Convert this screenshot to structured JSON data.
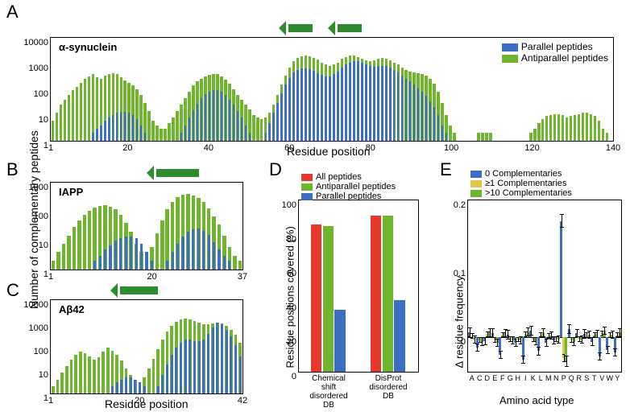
{
  "colors": {
    "antiparallel": "#6fb52e",
    "parallel": "#3c6fc4",
    "all": "#e8382e",
    "comp0": "#3c6fc4",
    "comp_ge1": "#d9c84a",
    "comp_gt10": "#6fb52e",
    "axis": "#000000",
    "background": "#ffffff",
    "arrow": "#2e8b2e"
  },
  "panel_labels": {
    "A": "A",
    "B": "B",
    "C": "C",
    "D": "D",
    "E": "E"
  },
  "shared_y_label": "Number of complementary peptides",
  "panelA": {
    "title": "α-synuclein",
    "xlabel": "Residue position",
    "ylog": true,
    "ymin": 1,
    "ymax": 10000,
    "yticks": [
      1,
      10,
      100,
      1000,
      10000
    ],
    "xmin": 1,
    "xmax": 140,
    "xticks": [
      1,
      20,
      40,
      60,
      80,
      100,
      120,
      140
    ],
    "arrows": [
      [
        60,
        66
      ],
      [
        72,
        78
      ]
    ],
    "legend": [
      {
        "label": "Parallel peptides",
        "color": "parallel"
      },
      {
        "label": "Antiparallel peptides",
        "color": "antiparallel"
      }
    ],
    "series_antiparallel": [
      6,
      12,
      25,
      40,
      60,
      90,
      120,
      180,
      260,
      320,
      380,
      300,
      260,
      350,
      400,
      420,
      380,
      300,
      220,
      180,
      140,
      100,
      60,
      30,
      14,
      6,
      4,
      3,
      3,
      5,
      8,
      14,
      25,
      45,
      80,
      140,
      200,
      260,
      320,
      360,
      400,
      380,
      320,
      240,
      160,
      100,
      60,
      40,
      25,
      16,
      10,
      8,
      7,
      8,
      12,
      25,
      60,
      150,
      350,
      700,
      1200,
      1600,
      1900,
      2000,
      1900,
      1700,
      1400,
      1100,
      900,
      800,
      900,
      1100,
      1500,
      1800,
      2000,
      2000,
      1800,
      1500,
      1300,
      1200,
      1300,
      1500,
      1600,
      1500,
      1300,
      1100,
      900,
      700,
      580,
      500,
      450,
      420,
      400,
      350,
      260,
      160,
      80,
      30,
      10,
      4,
      2,
      1,
      1,
      1,
      1,
      1,
      2,
      2,
      2,
      2,
      1,
      1,
      1,
      1,
      1,
      1,
      1,
      1,
      1,
      2,
      3,
      5,
      7,
      9,
      10,
      11,
      11,
      10,
      8,
      9,
      10,
      11,
      12,
      12,
      11,
      9,
      6,
      3,
      2,
      1
    ],
    "series_parallel": [
      0,
      0,
      0,
      0,
      0,
      0,
      0,
      1,
      1,
      1,
      2,
      3,
      4,
      6,
      8,
      10,
      12,
      13,
      13,
      12,
      10,
      7,
      4,
      2,
      1,
      0,
      0,
      0,
      0,
      0,
      0,
      1,
      2,
      4,
      8,
      15,
      28,
      45,
      65,
      80,
      90,
      90,
      80,
      60,
      40,
      25,
      14,
      8,
      4,
      2,
      1,
      1,
      1,
      2,
      5,
      12,
      30,
      70,
      150,
      280,
      450,
      580,
      650,
      650,
      600,
      520,
      430,
      360,
      320,
      320,
      380,
      500,
      700,
      900,
      1100,
      1200,
      1200,
      1100,
      950,
      800,
      750,
      780,
      820,
      780,
      680,
      560,
      440,
      340,
      260,
      200,
      150,
      110,
      80,
      55,
      35,
      20,
      10,
      4,
      2,
      1,
      0,
      0,
      0,
      0,
      0,
      0,
      0,
      0,
      0,
      0,
      0,
      0,
      0,
      0,
      0,
      0,
      0,
      0,
      0,
      0,
      0,
      0,
      0,
      0,
      0,
      0,
      0,
      0,
      0,
      0,
      0,
      0,
      0,
      0,
      0,
      0,
      0,
      0,
      0,
      0
    ]
  },
  "panelB": {
    "title": "IAPP",
    "xlabel": "",
    "ylog": true,
    "ymin": 1,
    "ymax": 1000,
    "yticks": [
      1,
      10,
      100,
      1000
    ],
    "xmin": 1,
    "xmax": 37,
    "xticks": [
      1,
      20,
      37
    ],
    "arrows": [
      [
        21,
        29
      ]
    ],
    "series_antiparallel": [
      2,
      4,
      8,
      15,
      30,
      50,
      80,
      110,
      140,
      160,
      170,
      150,
      120,
      80,
      40,
      20,
      8,
      4,
      3,
      6,
      18,
      50,
      120,
      220,
      320,
      380,
      400,
      370,
      300,
      210,
      130,
      70,
      35,
      15,
      6,
      3,
      2
    ],
    "series_parallel": [
      0,
      0,
      0,
      0,
      0,
      0,
      0,
      1,
      2,
      3,
      5,
      7,
      10,
      12,
      14,
      14,
      12,
      8,
      4,
      2,
      1,
      1,
      2,
      4,
      8,
      14,
      20,
      25,
      26,
      22,
      16,
      9,
      5,
      3,
      2,
      1,
      0
    ]
  },
  "panelC": {
    "title": "Aβ42",
    "xlabel": "Residue position",
    "ylog": true,
    "ymin": 1,
    "ymax": 10000,
    "yticks": [
      1,
      10,
      100,
      1000,
      10000
    ],
    "xmin": 1,
    "xmax": 42,
    "xticks": [
      1,
      20,
      42
    ],
    "arrows": [
      [
        16,
        24
      ]
    ],
    "series_antiparallel": [
      2,
      4,
      8,
      15,
      28,
      45,
      60,
      55,
      40,
      28,
      35,
      60,
      90,
      70,
      45,
      25,
      12,
      6,
      4,
      3,
      5,
      12,
      30,
      80,
      200,
      450,
      800,
      1200,
      1500,
      1600,
      1500,
      1300,
      1100,
      950,
      900,
      1000,
      1100,
      1000,
      800,
      550,
      320,
      150
    ],
    "series_parallel": [
      0,
      0,
      0,
      0,
      0,
      0,
      0,
      0,
      0,
      0,
      0,
      0,
      0,
      2,
      3,
      4,
      5,
      5,
      4,
      3,
      2,
      1,
      1,
      2,
      6,
      18,
      45,
      90,
      150,
      200,
      200,
      180,
      170,
      200,
      350,
      700,
      1100,
      900,
      550,
      280,
      120,
      40
    ]
  },
  "panelD": {
    "ylabel": "Residue positions covered (%)",
    "ymin": 0,
    "ymax": 100,
    "yticks": [
      0,
      20,
      40,
      60,
      80,
      100
    ],
    "categories": [
      "Chemical\nshift\ndisordered\nDB",
      "DisProt\ndisordered\nDB"
    ],
    "legend": [
      {
        "label": "All peptides",
        "color": "all"
      },
      {
        "label": "Antiparallel peptides",
        "color": "antiparallel"
      },
      {
        "label": "Parallel peptides",
        "color": "parallel"
      }
    ],
    "groups": [
      {
        "all": 86,
        "antiparallel": 85,
        "parallel": 36
      },
      {
        "all": 91,
        "antiparallel": 91,
        "parallel": 42
      }
    ]
  },
  "panelE": {
    "ylabel": "Δ residue frequency",
    "xlabel": "Amino acid type",
    "ymin": -0.05,
    "ymax": 0.2,
    "yticks": [
      0,
      0.1,
      0.2
    ],
    "xcats": [
      "A",
      "C",
      "D",
      "E",
      "F",
      "G",
      "H",
      "I",
      "K",
      "L",
      "M",
      "N",
      "P",
      "Q",
      "R",
      "S",
      "T",
      "V",
      "W",
      "Y"
    ],
    "legend": [
      {
        "label": "0 Complementaries",
        "color": "comp0"
      },
      {
        "label": "≥1 Complementaries",
        "color": "comp_ge1"
      },
      {
        "label": ">10 Complementaries",
        "color": "comp_gt10"
      }
    ],
    "data": {
      "A": {
        "c0": 0.008,
        "c1": 0.002,
        "c10": -0.003,
        "e0": 0.007,
        "e1": 0.004,
        "e10": 0.006
      },
      "C": {
        "c0": -0.015,
        "c1": -0.004,
        "c10": -0.006,
        "e0": 0.006,
        "e1": 0.004,
        "e10": 0.006
      },
      "D": {
        "c0": -0.005,
        "c1": 0.005,
        "c10": 0.007,
        "e0": 0.006,
        "e1": 0.004,
        "e10": 0.006
      },
      "E": {
        "c0": 0.006,
        "c1": -0.004,
        "c10": -0.008,
        "e0": 0.007,
        "e1": 0.004,
        "e10": 0.006
      },
      "F": {
        "c0": -0.025,
        "c1": 0.004,
        "c10": 0.006,
        "e0": 0.006,
        "e1": 0.004,
        "e10": 0.006
      },
      "G": {
        "c0": 0.004,
        "c1": -0.002,
        "c10": -0.004,
        "e0": 0.007,
        "e1": 0.004,
        "e10": 0.006
      },
      "H": {
        "c0": -0.008,
        "c1": -0.003,
        "c10": -0.004,
        "e0": 0.006,
        "e1": 0.004,
        "e10": 0.006
      },
      "I": {
        "c0": -0.032,
        "c1": 0.005,
        "c10": 0.008,
        "e0": 0.006,
        "e1": 0.004,
        "e10": 0.006
      },
      "K": {
        "c0": 0.01,
        "c1": -0.003,
        "c10": -0.005,
        "e0": 0.007,
        "e1": 0.004,
        "e10": 0.006
      },
      "L": {
        "c0": -0.02,
        "c1": 0.004,
        "c10": 0.007,
        "e0": 0.006,
        "e1": 0.004,
        "e10": 0.006
      },
      "M": {
        "c0": -0.008,
        "c1": 0.002,
        "c10": 0.003,
        "e0": 0.006,
        "e1": 0.004,
        "e10": 0.006
      },
      "N": {
        "c0": -0.004,
        "c1": -0.002,
        "c10": -0.003,
        "e0": 0.006,
        "e1": 0.004,
        "e10": 0.006
      },
      "P": {
        "c0": 0.17,
        "c1": -0.03,
        "c10": -0.035,
        "e0": 0.01,
        "e1": 0.006,
        "e10": 0.008
      },
      "Q": {
        "c0": 0.012,
        "c1": -0.004,
        "c10": -0.006,
        "e0": 0.007,
        "e1": 0.004,
        "e10": 0.006
      },
      "R": {
        "c0": 0.006,
        "c1": -0.002,
        "c10": -0.003,
        "e0": 0.006,
        "e1": 0.004,
        "e10": 0.006
      },
      "S": {
        "c0": 0.005,
        "c1": 0.003,
        "c10": 0.004,
        "e0": 0.007,
        "e1": 0.004,
        "e10": 0.006
      },
      "T": {
        "c0": -0.006,
        "c1": 0.004,
        "c10": 0.005,
        "e0": 0.006,
        "e1": 0.004,
        "e10": 0.006
      },
      "V": {
        "c0": -0.028,
        "c1": 0.006,
        "c10": 0.01,
        "e0": 0.006,
        "e1": 0.004,
        "e10": 0.006
      },
      "W": {
        "c0": -0.018,
        "c1": 0.003,
        "c10": 0.004,
        "e0": 0.006,
        "e1": 0.004,
        "e10": 0.006
      },
      "Y": {
        "c0": -0.022,
        "c1": 0.004,
        "c10": 0.007,
        "e0": 0.006,
        "e1": 0.004,
        "e10": 0.006
      }
    }
  }
}
